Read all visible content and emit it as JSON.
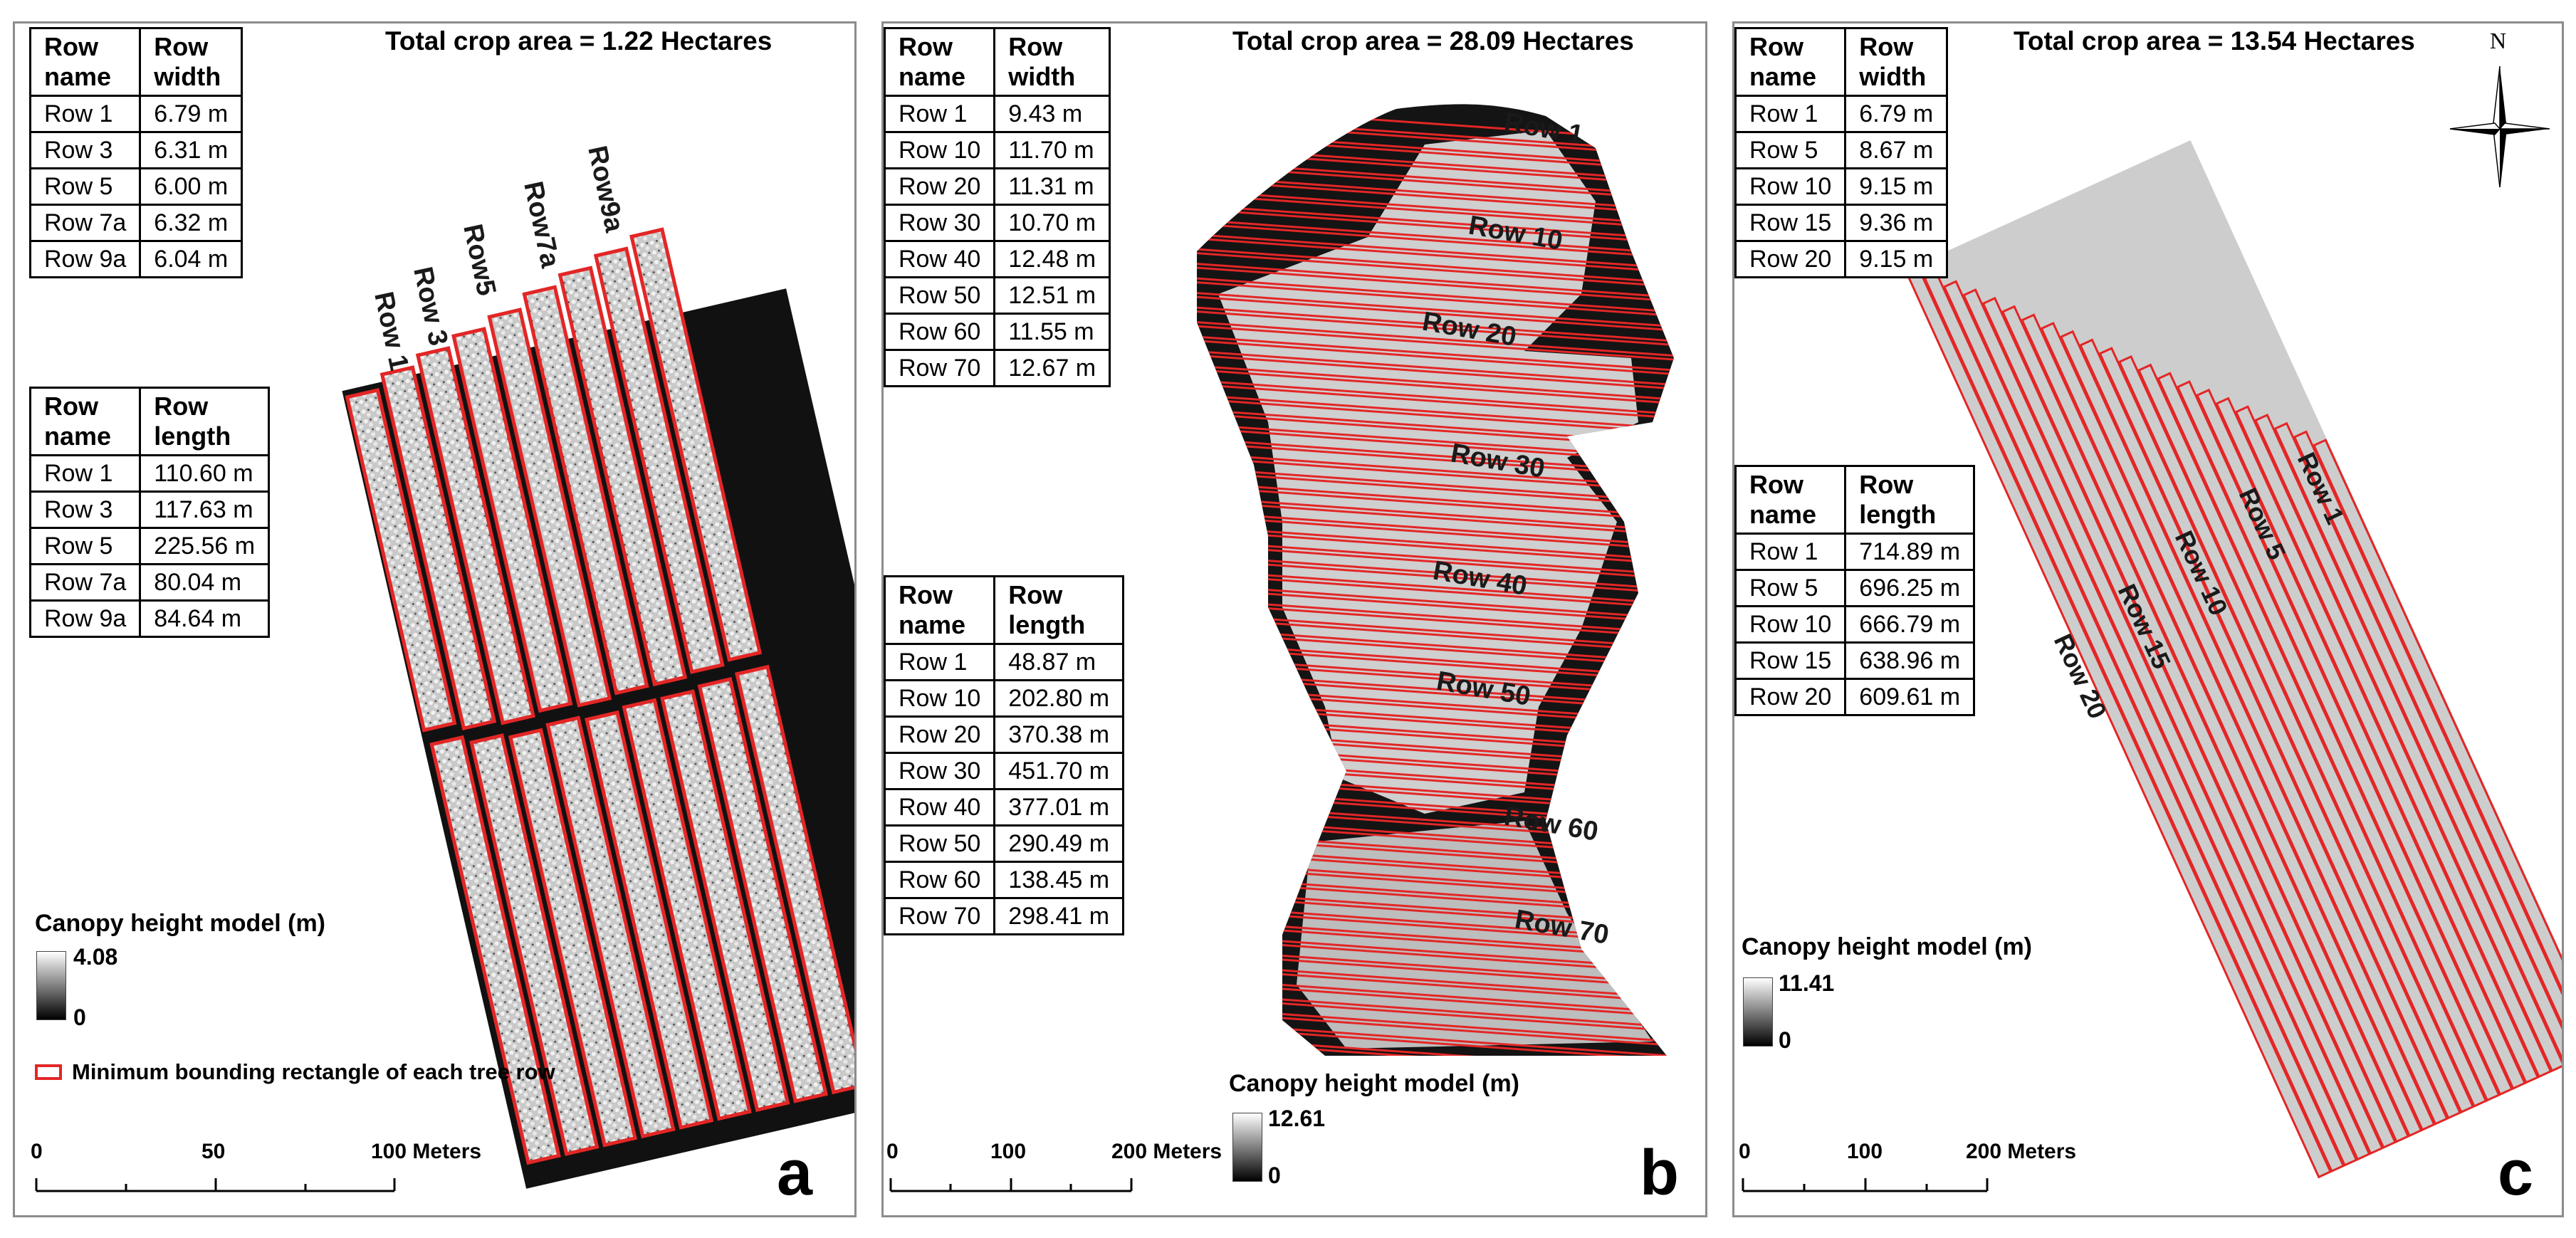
{
  "panel_a": {
    "crop_area": "Total crop area = 1.22 Hectares",
    "width_table": {
      "headers": [
        "Row\nname",
        "Row\nwidth"
      ],
      "rows": [
        [
          "Row 1",
          "6.79 m"
        ],
        [
          "Row 3",
          "6.31 m"
        ],
        [
          "Row 5",
          "6.00 m"
        ],
        [
          "Row 7a",
          "6.32 m"
        ],
        [
          "Row 9a",
          "6.04 m"
        ]
      ]
    },
    "length_table": {
      "headers": [
        "Row\nname",
        "Row\nlength"
      ],
      "rows": [
        [
          "Row 1",
          "110.60 m"
        ],
        [
          "Row 3",
          "117.63 m"
        ],
        [
          "Row 5",
          "225.56 m"
        ],
        [
          "Row 7a",
          "80.04 m"
        ],
        [
          "Row 9a",
          "84.64 m"
        ]
      ]
    },
    "row_labels": [
      "Row 1",
      "Row 3",
      "Row5",
      "Row7a",
      "Row9a"
    ],
    "legend_title": "Canopy height model (m)",
    "legend_max": "4.08",
    "legend_min": "0",
    "mbr_label": "Minimum bounding rectangle of each tree row",
    "scale_labels": [
      "0",
      "50",
      "100 Meters"
    ],
    "letter": "a"
  },
  "panel_b": {
    "crop_area": "Total crop area = 28.09 Hectares",
    "width_table": {
      "headers": [
        "Row\nname",
        "Row\nwidth"
      ],
      "rows": [
        [
          "Row 1",
          "9.43 m"
        ],
        [
          "Row 10",
          "11.70 m"
        ],
        [
          "Row 20",
          "11.31 m"
        ],
        [
          "Row 30",
          "10.70 m"
        ],
        [
          "Row 40",
          "12.48 m"
        ],
        [
          "Row 50",
          "12.51 m"
        ],
        [
          "Row 60",
          "11.55 m"
        ],
        [
          "Row 70",
          "12.67 m"
        ]
      ]
    },
    "length_table": {
      "headers": [
        "Row\nname",
        "Row\nlength"
      ],
      "rows": [
        [
          "Row 1",
          "48.87 m"
        ],
        [
          "Row 10",
          "202.80 m"
        ],
        [
          "Row 20",
          "370.38 m"
        ],
        [
          "Row 30",
          "451.70 m"
        ],
        [
          "Row 40",
          "377.01 m"
        ],
        [
          "Row 50",
          "290.49 m"
        ],
        [
          "Row 60",
          "138.45 m"
        ],
        [
          "Row 70",
          "298.41 m"
        ]
      ]
    },
    "row_labels": [
      "Row 1",
      "Row 10",
      "Row 20",
      "Row 30",
      "Row 40",
      "Row 50",
      "Row 60",
      "Row 70"
    ],
    "legend_title": "Canopy height model (m)",
    "legend_max": "12.61",
    "legend_min": "0",
    "scale_labels": [
      "0",
      "100",
      "200 Meters"
    ],
    "letter": "b"
  },
  "panel_c": {
    "crop_area": "Total crop area = 13.54 Hectares",
    "north": "N",
    "width_table": {
      "headers": [
        "Row\nname",
        "Row\nwidth"
      ],
      "rows": [
        [
          "Row 1",
          "6.79 m"
        ],
        [
          "Row 5",
          "8.67 m"
        ],
        [
          "Row 10",
          "9.15 m"
        ],
        [
          "Row 15",
          "9.36 m"
        ],
        [
          "Row 20",
          "9.15 m"
        ]
      ]
    },
    "length_table": {
      "headers": [
        "Row\nname",
        "Row\nlength"
      ],
      "rows": [
        [
          "Row 1",
          "714.89 m"
        ],
        [
          "Row 5",
          "696.25 m"
        ],
        [
          "Row 10",
          "666.79 m"
        ],
        [
          "Row 15",
          "638.96 m"
        ],
        [
          "Row 20",
          "609.61 m"
        ]
      ]
    },
    "row_labels": [
      "Row 1",
      "Row 5",
      "Row 10",
      "Row 15",
      "Row 20"
    ],
    "legend_title": "Canopy height model (m)",
    "legend_max": "11.41",
    "legend_min": "0",
    "scale_labels": [
      "0",
      "100",
      "200 Meters"
    ],
    "letter": "c"
  },
  "colors": {
    "mbr_red": "#e32626",
    "canopy_dark": "#111111",
    "canopy_light": "#dcdcdc",
    "panel_border": "#8c8c8c"
  }
}
